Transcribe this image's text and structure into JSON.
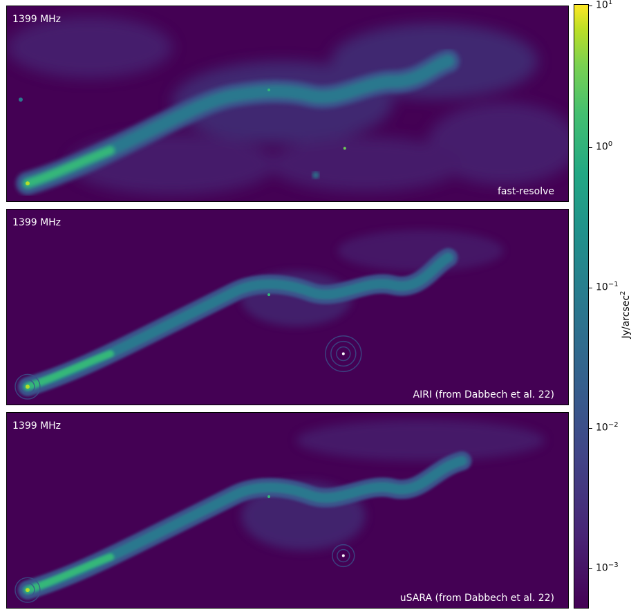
{
  "panels": [
    {
      "frequency": "1399 MHz",
      "method": "fast-resolve",
      "style": "smooth"
    },
    {
      "frequency": "1399 MHz",
      "method": "AIRI (from Dabbech et al. 22)",
      "style": "sharp"
    },
    {
      "frequency": "1399 MHz",
      "method": "uSARA (from Dabbech et al. 22)",
      "style": "sharp"
    }
  ],
  "colorbar": {
    "label_prefix": "Jy/arcsec",
    "label_exponent": "2",
    "scale": "log",
    "colormap": "viridis",
    "ticks": [
      {
        "base": "10",
        "exp": "1"
      },
      {
        "base": "10",
        "exp": "0"
      },
      {
        "base": "10",
        "exp": "−1"
      },
      {
        "base": "10",
        "exp": "−2"
      },
      {
        "base": "10",
        "exp": "−3"
      }
    ]
  },
  "colors": {
    "background": "#440154",
    "diffuse": "#3b4b8a",
    "jet_mid": "#2a8a8c",
    "jet_bright": "#35b779",
    "core": "#b5de2b"
  }
}
